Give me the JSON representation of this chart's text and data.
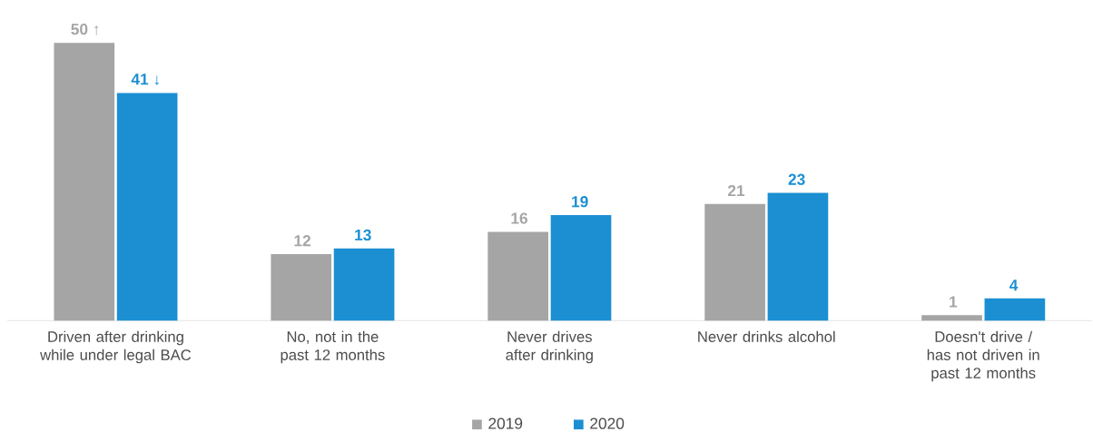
{
  "chart_data": {
    "type": "bar",
    "categories": [
      "Driven after drinking while under legal BAC",
      "No, not in the past 12 months",
      "Never drives after drinking",
      "Never drinks alcohol",
      "Doesn't drive / has not driven in past 12 months"
    ],
    "series": [
      {
        "name": "2019",
        "color": "#a5a5a5",
        "values": [
          50,
          12,
          16,
          21,
          1
        ],
        "value_labels": [
          "50 ↑",
          "12",
          "16",
          "21",
          "1"
        ]
      },
      {
        "name": "2020",
        "color": "#1b8fd2",
        "values": [
          41,
          13,
          19,
          23,
          4
        ],
        "value_labels": [
          "41 ↓",
          "13",
          "19",
          "23",
          "4"
        ]
      }
    ],
    "legend": "bottom"
  }
}
